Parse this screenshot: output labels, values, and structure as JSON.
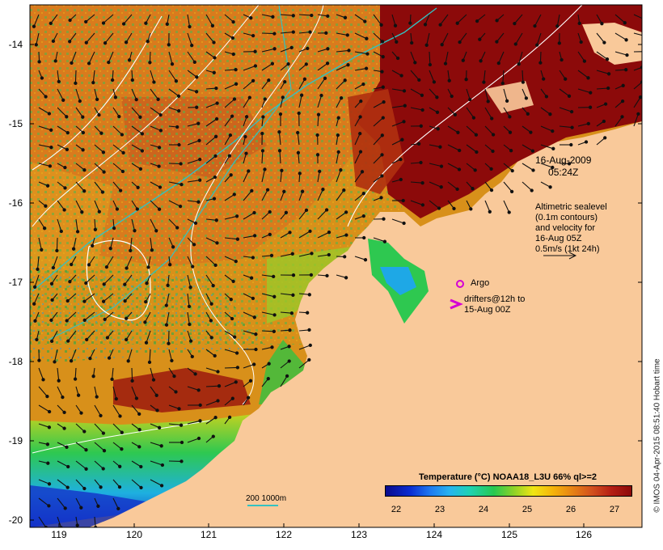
{
  "map": {
    "lat_labels": [
      "-14",
      "-15",
      "-16",
      "-17",
      "-18",
      "-19",
      "-20"
    ],
    "lon_labels": [
      "119",
      "120",
      "121",
      "122",
      "123",
      "124",
      "125",
      "126"
    ],
    "date_line1": "16-Aug-2009",
    "date_line2": "05:24Z",
    "altimetry_note": [
      "Altimetric sealevel",
      "(0.1m contours)",
      "and velocity for",
      "16-Aug 05Z",
      "0.5m/s (1kt 24h)"
    ],
    "argo_label": "Argo",
    "drifter_label_1": "drifters@12h to",
    "drifter_label_2": "15-Aug 00Z",
    "bathy_label": "200  1000m",
    "colorbar_title": "Temperature (°C) NOAA18_L3U 66% ql>=2",
    "colorbar_ticks": [
      "22",
      "23",
      "24",
      "25",
      "26",
      "27"
    ],
    "credit": "© IMOS 04-Apr-2015 08:51:40 Hobart time",
    "colors": {
      "land": "#f9c99a",
      "warm": "#8c0a0a",
      "contour": "#ffffff",
      "isobath": "#33c2c2",
      "argo": "#d400d4"
    }
  }
}
